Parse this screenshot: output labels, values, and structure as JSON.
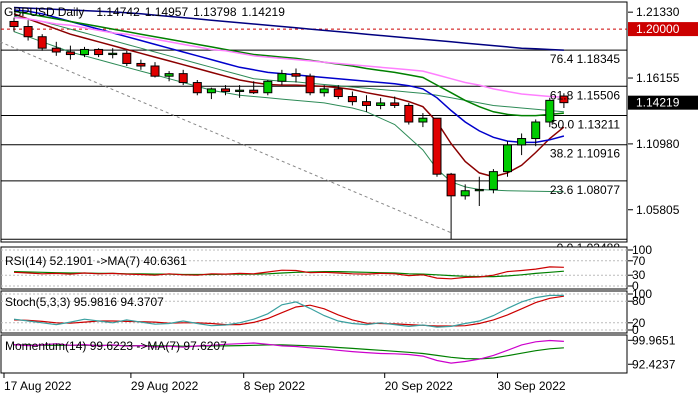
{
  "chart_data": [
    {
      "type": "candlestick",
      "symbol": "GBPUSD",
      "timeframe": "Daily",
      "ohlc_readout": {
        "open": "1.14742",
        "high": "1.14957",
        "low": "1.13798",
        "close": "1.14219"
      },
      "x_dates": [
        "17 Aug 2022",
        "29 Aug 2022",
        "8 Sep 2022",
        "20 Sep 2022",
        "30 Sep 2022"
      ],
      "y_ticks": [
        "1.21330",
        "1.16155",
        "1.10980",
        "1.05805"
      ],
      "ylim": [
        1.0335,
        1.2205
      ],
      "candles": [
        {
          "o": 1.206,
          "h": 1.209,
          "l": 1.198,
          "c": 1.202
        },
        {
          "o": 1.202,
          "h": 1.207,
          "l": 1.191,
          "c": 1.194
        },
        {
          "o": 1.194,
          "h": 1.196,
          "l": 1.183,
          "c": 1.185
        },
        {
          "o": 1.185,
          "h": 1.19,
          "l": 1.179,
          "c": 1.182
        },
        {
          "o": 1.182,
          "h": 1.187,
          "l": 1.176,
          "c": 1.18
        },
        {
          "o": 1.18,
          "h": 1.186,
          "l": 1.178,
          "c": 1.184
        },
        {
          "o": 1.184,
          "h": 1.185,
          "l": 1.178,
          "c": 1.18
        },
        {
          "o": 1.18,
          "h": 1.185,
          "l": 1.177,
          "c": 1.181
        },
        {
          "o": 1.181,
          "h": 1.183,
          "l": 1.171,
          "c": 1.173
        },
        {
          "o": 1.173,
          "h": 1.176,
          "l": 1.168,
          "c": 1.171
        },
        {
          "o": 1.171,
          "h": 1.174,
          "l": 1.162,
          "c": 1.163
        },
        {
          "o": 1.163,
          "h": 1.167,
          "l": 1.159,
          "c": 1.165
        },
        {
          "o": 1.165,
          "h": 1.168,
          "l": 1.156,
          "c": 1.158
        },
        {
          "o": 1.158,
          "h": 1.16,
          "l": 1.148,
          "c": 1.15
        },
        {
          "o": 1.15,
          "h": 1.154,
          "l": 1.145,
          "c": 1.153
        },
        {
          "o": 1.153,
          "h": 1.156,
          "l": 1.148,
          "c": 1.151
        },
        {
          "o": 1.151,
          "h": 1.156,
          "l": 1.146,
          "c": 1.152
        },
        {
          "o": 1.152,
          "h": 1.159,
          "l": 1.149,
          "c": 1.15
        },
        {
          "o": 1.15,
          "h": 1.16,
          "l": 1.148,
          "c": 1.159
        },
        {
          "o": 1.159,
          "h": 1.168,
          "l": 1.156,
          "c": 1.165
        },
        {
          "o": 1.165,
          "h": 1.169,
          "l": 1.158,
          "c": 1.163
        },
        {
          "o": 1.163,
          "h": 1.165,
          "l": 1.148,
          "c": 1.15
        },
        {
          "o": 1.15,
          "h": 1.156,
          "l": 1.147,
          "c": 1.153
        },
        {
          "o": 1.153,
          "h": 1.156,
          "l": 1.145,
          "c": 1.147
        },
        {
          "o": 1.147,
          "h": 1.151,
          "l": 1.14,
          "c": 1.143
        },
        {
          "o": 1.143,
          "h": 1.148,
          "l": 1.135,
          "c": 1.14
        },
        {
          "o": 1.14,
          "h": 1.146,
          "l": 1.137,
          "c": 1.142
        },
        {
          "o": 1.142,
          "h": 1.147,
          "l": 1.138,
          "c": 1.14
        },
        {
          "o": 1.14,
          "h": 1.142,
          "l": 1.125,
          "c": 1.127
        },
        {
          "o": 1.127,
          "h": 1.134,
          "l": 1.123,
          "c": 1.13
        },
        {
          "o": 1.13,
          "h": 1.13,
          "l": 1.084,
          "c": 1.086
        },
        {
          "o": 1.086,
          "h": 1.087,
          "l": 1.0349,
          "c": 1.069
        },
        {
          "o": 1.069,
          "h": 1.078,
          "l": 1.066,
          "c": 1.073
        },
        {
          "o": 1.073,
          "h": 1.084,
          "l": 1.061,
          "c": 1.074
        },
        {
          "o": 1.074,
          "h": 1.09,
          "l": 1.071,
          "c": 1.088
        },
        {
          "o": 1.088,
          "h": 1.112,
          "l": 1.084,
          "c": 1.109
        },
        {
          "o": 1.109,
          "h": 1.118,
          "l": 1.101,
          "c": 1.114
        },
        {
          "o": 1.114,
          "h": 1.129,
          "l": 1.108,
          "c": 1.127
        },
        {
          "o": 1.127,
          "h": 1.146,
          "l": 1.123,
          "c": 1.144
        },
        {
          "o": 1.1474,
          "h": 1.1496,
          "l": 1.138,
          "c": 1.1422
        }
      ],
      "moving_averages": [
        {
          "color": "#8b0000",
          "values": [
            1.212,
            1.208,
            1.204,
            1.2,
            1.196,
            1.193,
            1.19,
            1.187,
            1.184,
            1.181,
            1.178,
            1.175,
            1.172,
            1.169,
            1.166,
            1.163,
            1.16,
            1.158,
            1.1565,
            1.156,
            1.156,
            1.1555,
            1.155,
            1.154,
            1.1525,
            1.15,
            1.148,
            1.146,
            1.143,
            1.139,
            1.127,
            1.11,
            1.096,
            1.087,
            1.084,
            1.087,
            1.093,
            1.103,
            1.114,
            1.123
          ]
        },
        {
          "color": "#0000cc",
          "values": [
            1.215,
            1.214,
            1.212,
            1.209,
            1.206,
            1.203,
            1.2,
            1.197,
            1.194,
            1.191,
            1.188,
            1.185,
            1.182,
            1.179,
            1.176,
            1.173,
            1.17,
            1.168,
            1.166,
            1.165,
            1.164,
            1.163,
            1.162,
            1.161,
            1.16,
            1.159,
            1.158,
            1.157,
            1.1555,
            1.153,
            1.146,
            1.136,
            1.127,
            1.12,
            1.115,
            1.112,
            1.111,
            1.111,
            1.113,
            1.116
          ]
        },
        {
          "color": "#008000",
          "values": [
            1.214,
            1.212,
            1.21,
            1.208,
            1.206,
            1.204,
            1.202,
            1.2,
            1.198,
            1.196,
            1.194,
            1.192,
            1.19,
            1.188,
            1.186,
            1.184,
            1.182,
            1.18,
            1.179,
            1.178,
            1.177,
            1.1755,
            1.174,
            1.1725,
            1.171,
            1.169,
            1.1675,
            1.166,
            1.164,
            1.162,
            1.156,
            1.15,
            1.144,
            1.139,
            1.135,
            1.133,
            1.132,
            1.132,
            1.133,
            1.134
          ]
        },
        {
          "color": "#ff7fff",
          "values": [
            1.209,
            1.208,
            1.206,
            1.204,
            1.203,
            1.201,
            1.199,
            1.197,
            1.196,
            1.194,
            1.192,
            1.19,
            1.188,
            1.186,
            1.184,
            1.183,
            1.181,
            1.179,
            1.178,
            1.177,
            1.176,
            1.175,
            1.174,
            1.173,
            1.172,
            1.171,
            1.17,
            1.169,
            1.168,
            1.167,
            1.164,
            1.161,
            1.158,
            1.156,
            1.153,
            1.151,
            1.149,
            1.148,
            1.147,
            1.1465
          ]
        },
        {
          "color": "#000080",
          "values": [
            1.217,
            1.2165,
            1.216,
            1.2155,
            1.215,
            1.2145,
            1.214,
            1.2135,
            1.2128,
            1.212,
            1.211,
            1.21,
            1.209,
            1.208,
            1.207,
            1.206,
            1.205,
            1.204,
            1.203,
            1.202,
            1.201,
            1.2,
            1.199,
            1.198,
            1.197,
            1.196,
            1.195,
            1.194,
            1.193,
            1.192,
            1.191,
            1.19,
            1.189,
            1.188,
            1.187,
            1.186,
            1.185,
            1.1845,
            1.184,
            1.1835
          ]
        }
      ],
      "channel_color": "#2e8b57",
      "channel_upper": [
        1.21,
        1.208,
        1.206,
        1.203,
        1.2,
        1.197,
        1.194,
        1.191,
        1.188,
        1.185,
        1.182,
        1.179,
        1.176,
        1.173,
        1.17,
        1.167,
        1.164,
        1.161,
        1.16,
        1.159,
        1.1585,
        1.1575,
        1.1565,
        1.1555,
        1.1545,
        1.1535,
        1.1525,
        1.1515,
        1.1505,
        1.1495,
        1.148,
        1.146,
        1.144,
        1.142,
        1.14,
        1.139,
        1.138,
        1.137,
        1.136,
        1.135
      ],
      "channel_lower": [
        1.198,
        1.194,
        1.19,
        1.186,
        1.182,
        1.179,
        1.176,
        1.173,
        1.17,
        1.167,
        1.164,
        1.161,
        1.158,
        1.155,
        1.152,
        1.15,
        1.148,
        1.147,
        1.146,
        1.145,
        1.144,
        1.143,
        1.142,
        1.14,
        1.138,
        1.135,
        1.13,
        1.125,
        1.115,
        1.105,
        1.09,
        1.08,
        1.076,
        1.074,
        1.0735,
        1.073,
        1.0728,
        1.0726,
        1.0724,
        1.0722
      ],
      "hlines": [
        {
          "value": 1.2,
          "label": "1.20000",
          "style": "dashed",
          "color": "#cc0000",
          "badge": true
        },
        {
          "value": 1.18345,
          "label": "76.4 1.18345",
          "style": "solid",
          "color": "#000000"
        },
        {
          "value": 1.15506,
          "label": "61.8 1.15506",
          "style": "solid",
          "color": "#000000"
        },
        {
          "value": 1.13211,
          "label": "50.0 1.13211",
          "style": "solid",
          "color": "#000000"
        },
        {
          "value": 1.10916,
          "label": "38.2 1.10916",
          "style": "solid",
          "color": "#000000"
        },
        {
          "value": 1.08077,
          "label": "23.6 1.08077",
          "style": "solid",
          "color": "#000000"
        },
        {
          "value": 1.03488,
          "label": "0.0 1.03488",
          "style": "solid",
          "color": "#000000"
        }
      ],
      "current_price": {
        "value": 1.14219,
        "label": "1.14219"
      },
      "trendline": {
        "from": [
          0,
          1.19
        ],
        "to": [
          31,
          1.04
        ]
      }
    },
    {
      "type": "line",
      "title": "RSI(14) 52.1901 ->MA(7) 40.6361",
      "y_ticks": [
        "100",
        "70",
        "30",
        "0"
      ],
      "ylim": [
        0,
        100
      ],
      "series": [
        {
          "name": "RSI(14)",
          "color": "#cc0000",
          "values": [
            38,
            36,
            34,
            35,
            33,
            36,
            34,
            35,
            33,
            32,
            30,
            34,
            31,
            30,
            34,
            33,
            35,
            34,
            39,
            44,
            43,
            37,
            38,
            36,
            34,
            33,
            35,
            34,
            29,
            31,
            22,
            20,
            24,
            25,
            30,
            40,
            43,
            47,
            53,
            52
          ]
        },
        {
          "name": "MA(7)",
          "color": "#008000",
          "values": [
            40,
            39,
            38,
            37,
            36,
            36,
            35,
            35,
            34,
            34,
            33,
            33,
            32,
            32,
            32,
            33,
            33,
            33,
            34,
            36,
            38,
            39,
            40,
            40,
            39,
            38,
            37,
            36,
            34,
            33,
            31,
            29,
            27,
            26,
            26,
            28,
            31,
            35,
            38,
            41
          ]
        }
      ]
    },
    {
      "type": "line",
      "title": "Stoch(5,3,3) 95.9816 94.3707",
      "y_ticks": [
        "100",
        "80",
        "20",
        "0"
      ],
      "ylim": [
        0,
        100
      ],
      "series": [
        {
          "name": "%K",
          "color": "#3aa0a0",
          "values": [
            30,
            25,
            20,
            15,
            22,
            30,
            25,
            20,
            28,
            22,
            16,
            18,
            25,
            18,
            12,
            14,
            20,
            30,
            45,
            70,
            78,
            60,
            40,
            25,
            18,
            15,
            20,
            15,
            10,
            14,
            8,
            10,
            18,
            25,
            40,
            60,
            78,
            90,
            96,
            96
          ]
        },
        {
          "name": "%D",
          "color": "#cc0000",
          "values": [
            28,
            27,
            24,
            20,
            19,
            22,
            25,
            25,
            24,
            23,
            22,
            19,
            20,
            20,
            18,
            15,
            15,
            21,
            32,
            48,
            64,
            69,
            59,
            42,
            28,
            19,
            18,
            17,
            15,
            13,
            11,
            11,
            12,
            18,
            28,
            42,
            59,
            76,
            88,
            94
          ]
        }
      ]
    },
    {
      "type": "line",
      "title": "Momentum(14) 99.6223 ->MA(7) 97.6207",
      "y_ticks": [
        "99.9651",
        "92.4237"
      ],
      "ylim": [
        90.3,
        101.0
      ],
      "series": [
        {
          "name": "Momentum(14)",
          "color": "#cc00cc",
          "values": [
            98.6,
            98.3,
            98.5,
            98.9,
            98.4,
            98.6,
            98.2,
            98.5,
            98.1,
            98.3,
            97.9,
            98.1,
            97.8,
            98.2,
            98.4,
            98.7,
            98.9,
            99.1,
            98.7,
            98.2,
            98.0,
            97.6,
            97.3,
            96.8,
            96.4,
            96.1,
            95.8,
            95.7,
            95.5,
            95.0,
            93.6,
            92.8,
            93.3,
            94.0,
            95.2,
            96.8,
            98.5,
            99.5,
            99.9,
            99.6
          ]
        },
        {
          "name": "MA(7)",
          "color": "#008000",
          "values": [
            98.5,
            98.5,
            98.4,
            98.4,
            98.4,
            98.4,
            98.4,
            98.4,
            98.3,
            98.3,
            98.2,
            98.2,
            98.1,
            98.1,
            98.2,
            98.2,
            98.3,
            98.4,
            98.5,
            98.5,
            98.4,
            98.2,
            98.0,
            97.7,
            97.4,
            97.1,
            96.8,
            96.5,
            96.2,
            95.8,
            95.2,
            94.6,
            94.2,
            94.1,
            94.4,
            95.1,
            95.9,
            96.7,
            97.3,
            97.6
          ]
        }
      ]
    }
  ]
}
